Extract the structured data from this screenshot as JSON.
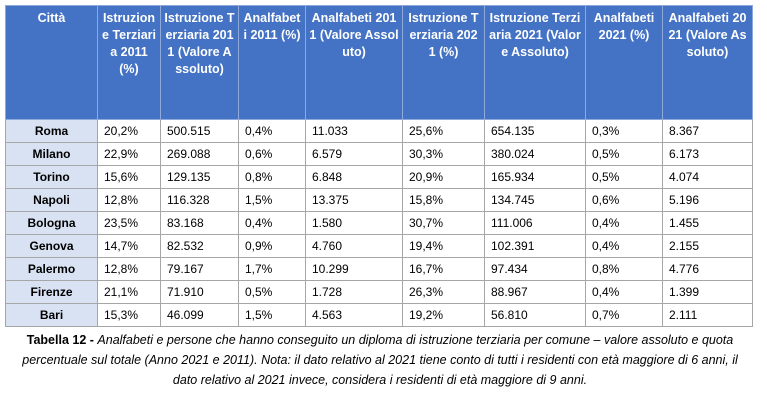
{
  "table": {
    "header": [
      "Città",
      "Istruzione Terziaria 2011 (%)",
      "Istruzione Terziaria 2011 (Valore Assoluto)",
      "Analfabeti 2011 (%)",
      "Analfabeti 2011 (Valore Assoluto)",
      "Istruzione Terziaria 2021 (%)",
      "Istruzione Terziaria 2021 (Valore Assoluto)",
      "Analfabeti 2021 (%)",
      "Analfabeti 2021 (Valore Assoluto)"
    ],
    "rows": [
      [
        "Roma",
        "20,2%",
        "500.515",
        "0,4%",
        "11.033",
        "25,6%",
        "654.135",
        "0,3%",
        "8.367"
      ],
      [
        "Milano",
        "22,9%",
        "269.088",
        "0,6%",
        "6.579",
        "30,3%",
        "380.024",
        "0,5%",
        "6.173"
      ],
      [
        "Torino",
        "15,6%",
        "129.135",
        "0,8%",
        "6.848",
        "20,9%",
        "165.934",
        "0,5%",
        "4.074"
      ],
      [
        "Napoli",
        "12,8%",
        "116.328",
        "1,5%",
        "13.375",
        "15,8%",
        "134.745",
        "0,6%",
        "5.196"
      ],
      [
        "Bologna",
        "23,5%",
        "83.168",
        "0,4%",
        "1.580",
        "30,7%",
        "111.006",
        "0,4%",
        "1.455"
      ],
      [
        "Genova",
        "14,7%",
        "82.532",
        "0,9%",
        "4.760",
        "19,4%",
        "102.391",
        "0,4%",
        "2.155"
      ],
      [
        "Palermo",
        "12,8%",
        "79.167",
        "1,7%",
        "10.299",
        "16,7%",
        "97.434",
        "0,8%",
        "4.776"
      ],
      [
        "Firenze",
        "21,1%",
        "71.910",
        "0,5%",
        "1.728",
        "26,3%",
        "88.967",
        "0,4%",
        "1.399"
      ],
      [
        "Bari",
        "15,3%",
        "46.099",
        "1,5%",
        "4.563",
        "19,2%",
        "56.810",
        "0,7%",
        "2.111"
      ]
    ]
  },
  "caption": {
    "label": "Tabella 12 - ",
    "text": "Analfabeti e persone che hanno conseguito un diploma di istruzione terziaria per comune – valore assoluto e quota percentuale sul totale (Anno 2021 e 2011). Nota: il dato relativo al 2021 tiene conto di tutti i residenti con età maggiore di 6 anni, il dato relativo al 2021 invece, considera i residenti di età maggiore di 9 anni."
  }
}
